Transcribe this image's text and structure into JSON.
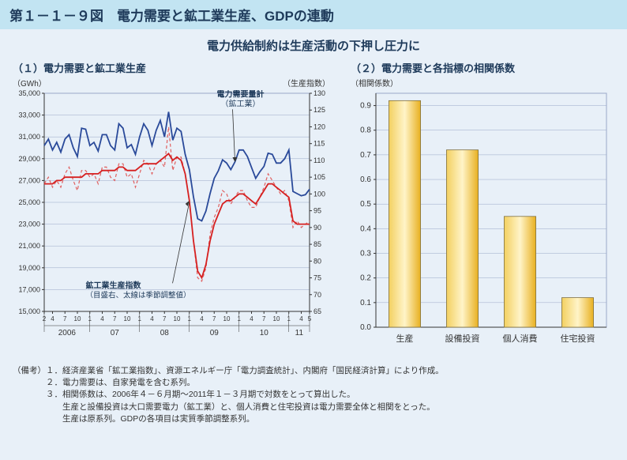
{
  "figure_title": "第１－１－９図　電力需要と鉱工業生産、GDPの連動",
  "subtitle": "電力供給制約は生産活動の下押し圧力に",
  "panel1": {
    "title": "（１）電力需要と鉱工業生産",
    "unit_left": "（GWh）",
    "unit_right": "（生産指数）",
    "y_left_ticks": [
      15000,
      17000,
      19000,
      21000,
      23000,
      25000,
      27000,
      29000,
      31000,
      33000,
      35000
    ],
    "y_right_ticks": [
      65,
      70,
      75,
      80,
      85,
      90,
      95,
      100,
      105,
      110,
      115,
      120,
      125,
      130
    ],
    "year_groups": [
      "2006",
      "07",
      "08",
      "09",
      "10",
      "11"
    ],
    "month_ticks": [
      "2",
      "4",
      "7",
      "10",
      "1",
      "4",
      "7",
      "10",
      "1",
      "4",
      "7",
      "10",
      "1",
      "4",
      "7",
      "10",
      "1",
      "4",
      "7",
      "10",
      "1",
      "4",
      "5"
    ],
    "series_demand_label": "電力需要量計",
    "series_demand_sub": "（鉱工業）",
    "series_index_label": "鉱工業生産指数",
    "series_index_sub": "（目盛右、太線は季節調整値）",
    "demand_color": "#2a4a9a",
    "index_main_color": "#d62020",
    "index_dash_color": "#e06060",
    "index_main_dash": "none",
    "index_dash_pattern": "4,3",
    "grid_color": "#9aa8c8",
    "background_color": "#e8f0f8",
    "plot_y_left_lim": [
      15000,
      35000
    ],
    "plot_y_right_lim": [
      65,
      130
    ],
    "n_points": 65,
    "demand_values_gwh": [
      30200,
      30800,
      29800,
      30500,
      29600,
      30800,
      31200,
      30000,
      29200,
      31800,
      31700,
      30200,
      30500,
      29700,
      31200,
      31200,
      30200,
      29800,
      32200,
      31800,
      30000,
      30300,
      29400,
      31000,
      32200,
      31600,
      30200,
      31600,
      32500,
      31000,
      33300,
      30700,
      31800,
      31500,
      29400,
      28000,
      25500,
      23500,
      23300,
      24200,
      25800,
      27200,
      27900,
      28900,
      28600,
      28000,
      28700,
      29800,
      29800,
      29200,
      28200,
      27200,
      27800,
      28300,
      29500,
      29400,
      28600,
      28600,
      29000,
      29800,
      26000,
      25800,
      25600,
      25700,
      26200
    ],
    "index_raw_values": [
      103,
      105,
      102,
      104,
      102,
      106,
      108,
      104,
      101,
      107,
      107,
      105,
      106,
      103,
      108,
      108,
      105,
      104,
      109,
      109,
      105,
      106,
      102,
      106,
      110,
      109,
      106,
      109,
      110,
      108,
      120,
      107,
      111,
      111,
      106,
      98,
      86,
      75,
      74,
      78,
      88,
      93,
      96,
      101,
      100,
      97,
      99,
      101,
      101,
      98,
      96,
      96,
      99,
      102,
      106,
      104,
      102,
      100,
      101,
      98,
      90,
      92,
      90,
      91,
      92
    ],
    "index_sa_values": [
      103,
      103,
      103,
      104,
      104,
      105,
      105,
      105,
      105,
      105,
      106,
      106,
      106,
      106,
      107,
      107,
      107,
      107,
      108,
      108,
      107,
      107,
      107,
      108,
      109,
      109,
      109,
      109,
      110,
      111,
      112,
      110,
      111,
      110,
      106,
      98,
      86,
      77,
      75,
      79,
      86,
      91,
      94,
      97,
      98,
      98,
      99,
      100,
      100,
      99,
      98,
      97,
      99,
      101,
      103,
      103,
      102,
      101,
      100,
      99,
      92,
      91,
      91,
      91,
      91
    ]
  },
  "panel2": {
    "title": "（２）電力需要と各指標の相関係数",
    "unit": "（相関係数）",
    "categories": [
      "生産",
      "設備投資",
      "個人消費",
      "住宅投資"
    ],
    "values": [
      0.92,
      0.72,
      0.45,
      0.12
    ],
    "y_ticks": [
      0.0,
      0.1,
      0.2,
      0.3,
      0.4,
      0.5,
      0.6,
      0.7,
      0.8,
      0.9
    ],
    "ylim": [
      0.0,
      0.95
    ],
    "bar_fill_top": "#f3d060",
    "bar_fill_bottom": "#e8b020",
    "bar_border": "#807040",
    "grid_color": "#9aa8c8",
    "background_color": "#e8f0f8"
  },
  "notes": {
    "label": "（備考）",
    "items": [
      "１．経済産業省「鉱工業指数」、資源エネルギー庁「電力調査統計」、内閣府「国民経済計算」により作成。",
      "２．電力需要は、自家発電を含む系列。",
      "３．相関係数は、2006年４－６月期～2011年１－３月期で対数をとって算出した。",
      "　　生産と設備投資は大口需要電力（鉱工業）と、個人消費と住宅投資は電力需要全体と相関をとった。",
      "　　生産は原系列。GDPの各項目は実質季節調整系列。"
    ]
  }
}
